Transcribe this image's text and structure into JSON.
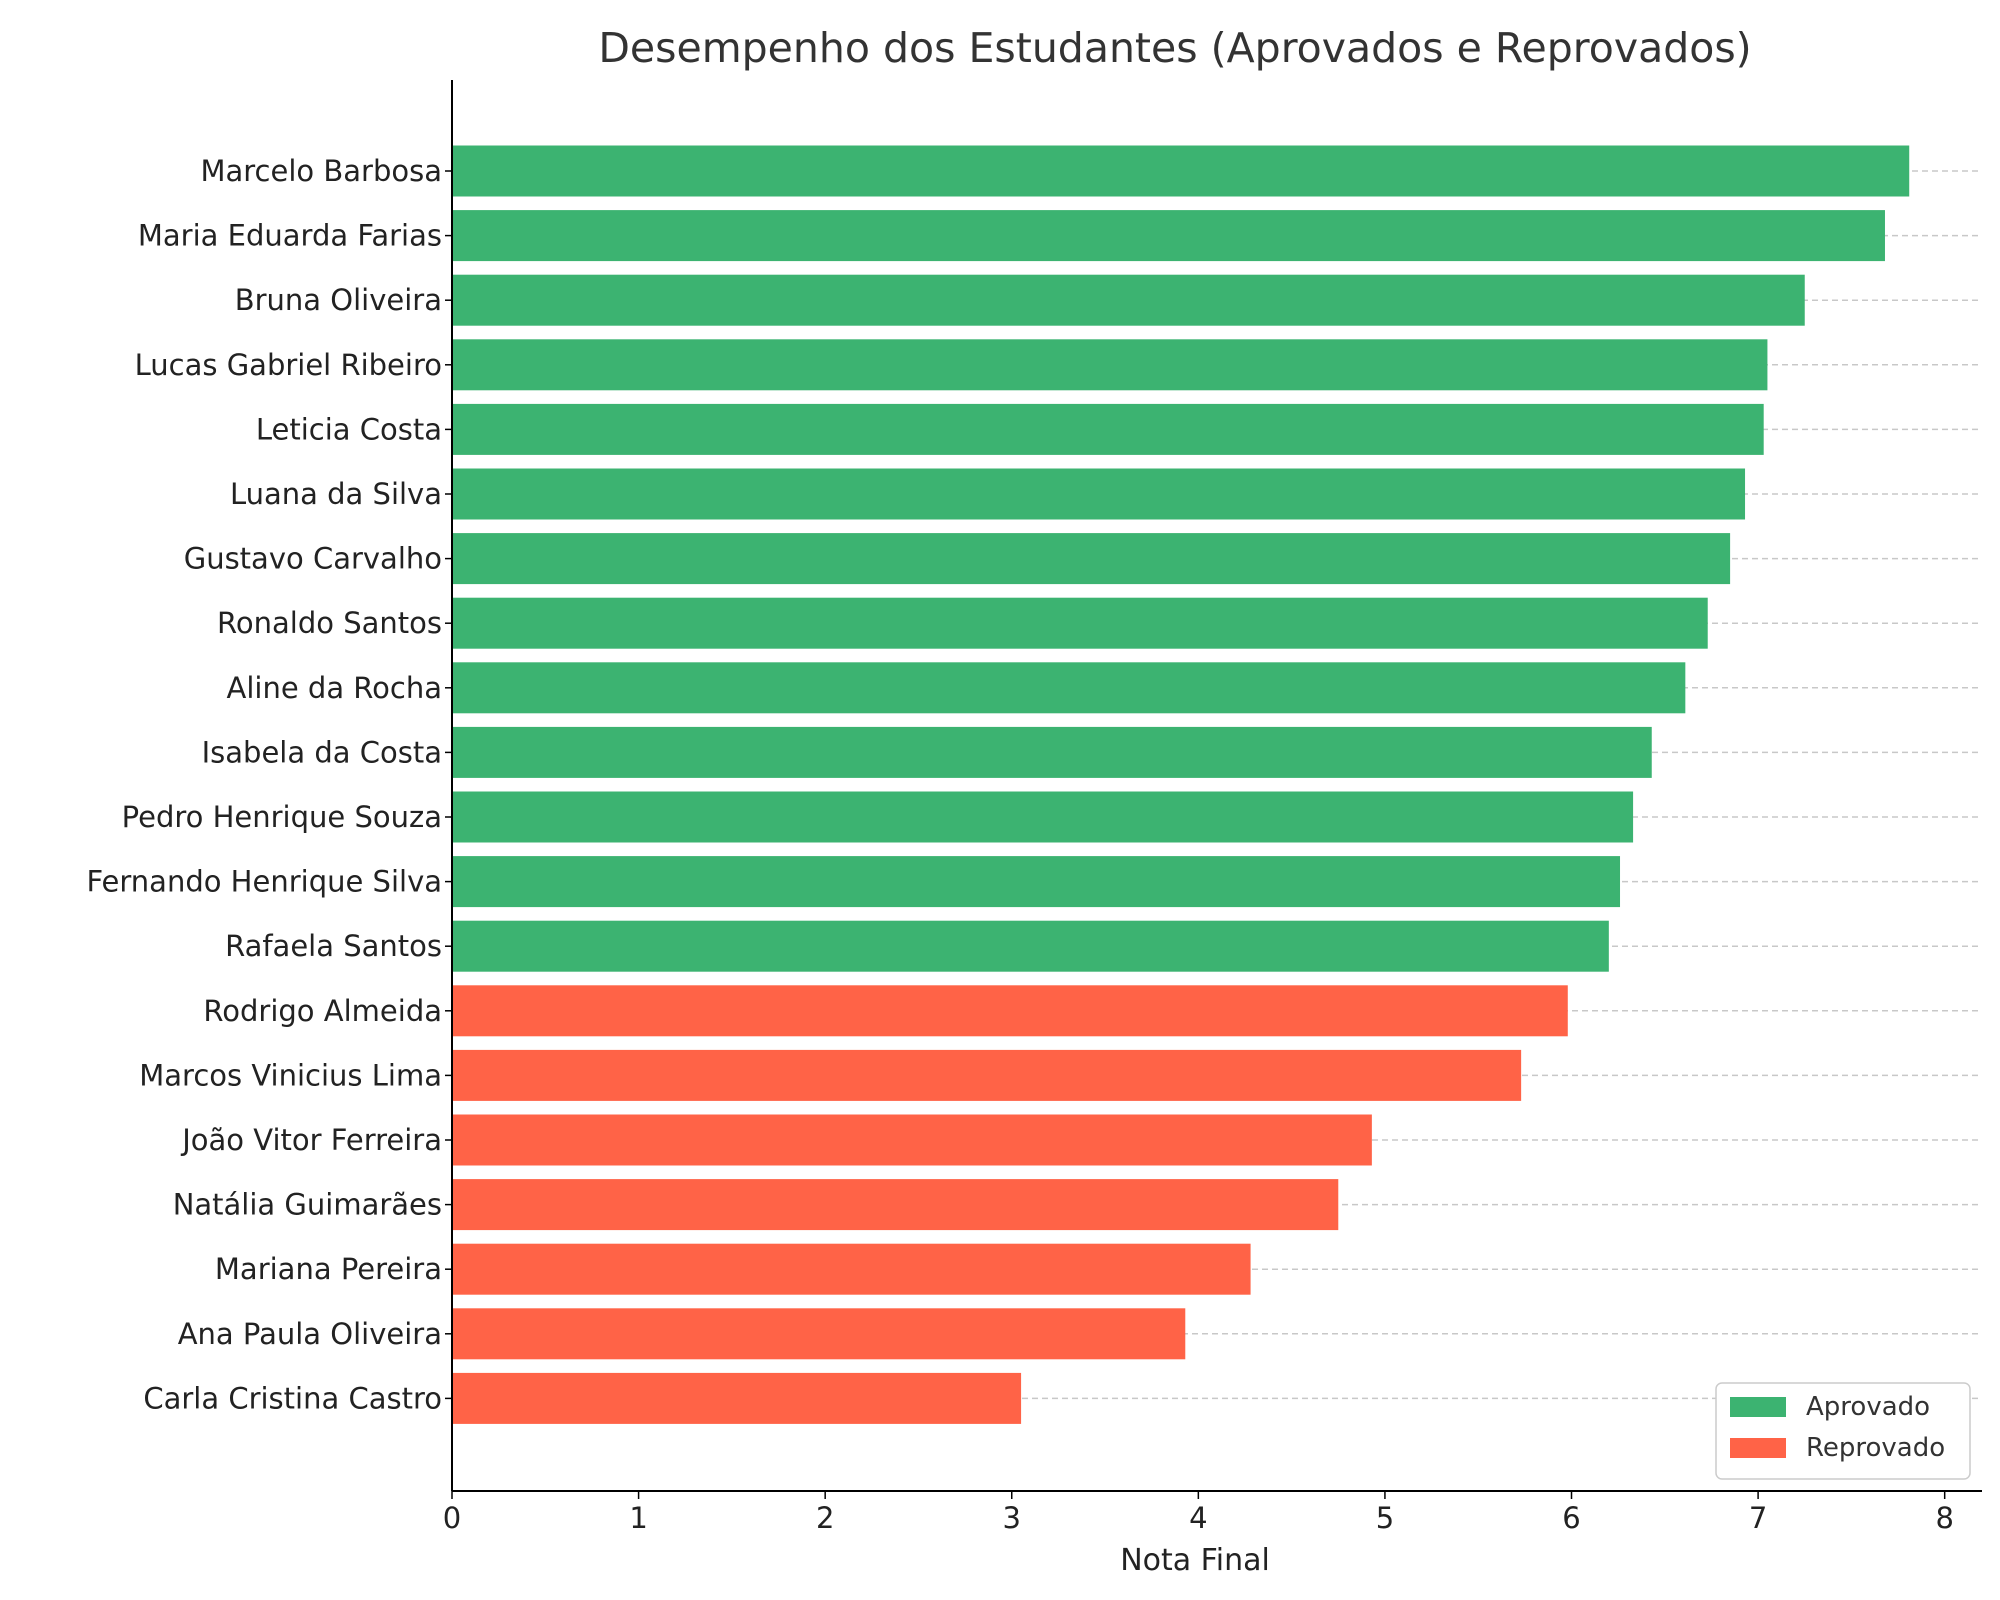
{
  "chart_data": {
    "type": "bar",
    "orientation": "horizontal",
    "title": "Desempenho dos Estudantes (Aprovados e Reprovados)",
    "xlabel": "Nota Final",
    "ylabel": "",
    "xlim": [
      0,
      8.2
    ],
    "xticks": [
      "0",
      "1",
      "2",
      "3",
      "4",
      "5",
      "6",
      "7",
      "8"
    ],
    "grid": "y-dashed",
    "legend_position": "bottom-right",
    "legend": [
      {
        "label": "Aprovado",
        "color": "#3cb371"
      },
      {
        "label": "Reprovado",
        "color": "#ff6347"
      }
    ],
    "categories": [
      "Marcelo Barbosa",
      "Maria Eduarda Farias",
      "Bruna Oliveira",
      "Lucas Gabriel Ribeiro",
      "Leticia Costa",
      "Luana da Silva",
      "Gustavo Carvalho",
      "Ronaldo Santos",
      "Aline da Rocha",
      "Isabela da Costa",
      "Pedro Henrique Souza",
      "Fernando Henrique Silva",
      "Rafaela Santos",
      "Rodrigo Almeida",
      "Marcos Vinicius Lima",
      "João Vitor Ferreira",
      "Natália Guimarães",
      "Mariana Pereira",
      "Ana Paula Oliveira",
      "Carla Cristina Castro"
    ],
    "values": [
      7.81,
      7.68,
      7.25,
      7.05,
      7.03,
      6.93,
      6.85,
      6.73,
      6.61,
      6.43,
      6.33,
      6.26,
      6.2,
      5.98,
      5.73,
      4.93,
      4.75,
      4.28,
      3.93,
      3.05
    ],
    "status": [
      "Aprovado",
      "Aprovado",
      "Aprovado",
      "Aprovado",
      "Aprovado",
      "Aprovado",
      "Aprovado",
      "Aprovado",
      "Aprovado",
      "Aprovado",
      "Aprovado",
      "Aprovado",
      "Aprovado",
      "Reprovado",
      "Reprovado",
      "Reprovado",
      "Reprovado",
      "Reprovado",
      "Reprovado",
      "Reprovado"
    ]
  }
}
